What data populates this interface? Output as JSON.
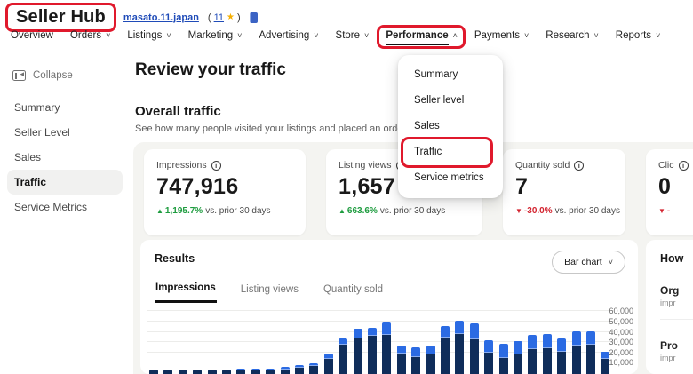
{
  "icons": {
    "info": "i",
    "star": "★",
    "chevron_down": "˅",
    "chevron_up": "˄",
    "trend_up": "▲",
    "trend_down": "▼"
  },
  "colors": {
    "annotation": "#e0192c",
    "bar_organic": "#0f2d5a",
    "bar_promoted": "#2b6be3",
    "positive": "#1e9c3f",
    "negative": "#d3232f"
  },
  "header": {
    "title": "Seller Hub",
    "username": "masato.11.japan",
    "feedback_prefix": "(",
    "feedback_count": "11",
    "feedback_suffix": ")"
  },
  "nav": {
    "items": [
      {
        "label": "Overview",
        "chevron": "none",
        "active": false,
        "annotated": false
      },
      {
        "label": "Orders",
        "chevron": "down",
        "active": false,
        "annotated": false
      },
      {
        "label": "Listings",
        "chevron": "down",
        "active": false,
        "annotated": false
      },
      {
        "label": "Marketing",
        "chevron": "down",
        "active": false,
        "annotated": false
      },
      {
        "label": "Advertising",
        "chevron": "down",
        "active": false,
        "annotated": false
      },
      {
        "label": "Store",
        "chevron": "down",
        "active": false,
        "annotated": false
      },
      {
        "label": "Performance",
        "chevron": "up",
        "active": true,
        "annotated": true
      },
      {
        "label": "Payments",
        "chevron": "down",
        "active": false,
        "annotated": false
      },
      {
        "label": "Research",
        "chevron": "down",
        "active": false,
        "annotated": false
      },
      {
        "label": "Reports",
        "chevron": "down",
        "active": false,
        "annotated": false
      }
    ]
  },
  "sidebar": {
    "collapse_label": "Collapse",
    "items": [
      {
        "label": "Summary",
        "active": false
      },
      {
        "label": "Seller Level",
        "active": false
      },
      {
        "label": "Sales",
        "active": false
      },
      {
        "label": "Traffic",
        "active": true
      },
      {
        "label": "Service Metrics",
        "active": false
      }
    ]
  },
  "dropdown": {
    "items": [
      {
        "label": "Summary",
        "annotated": false
      },
      {
        "label": "Seller level",
        "annotated": false
      },
      {
        "label": "Sales",
        "annotated": false
      },
      {
        "label": "Traffic",
        "annotated": true
      },
      {
        "label": "Service metrics",
        "annotated": false
      }
    ]
  },
  "main": {
    "page_title": "Review your traffic",
    "section_title": "Overall traffic",
    "section_description": "See how many people visited your listings and placed an order.",
    "cards": [
      {
        "label": "Impressions",
        "value": "747,916",
        "trend": "up",
        "delta": "1,195.7%",
        "suffix": "vs. prior 30 days"
      },
      {
        "label": "Listing views",
        "value": "1,657",
        "trend": "up",
        "delta": "663.6%",
        "suffix": "vs. prior 30 days"
      },
      {
        "label": "Quantity sold",
        "value": "7",
        "trend": "down",
        "delta": "-30.0%",
        "suffix": "vs. prior 30 days"
      },
      {
        "label": "Clic",
        "value": "0",
        "trend": "down",
        "delta": "-",
        "suffix": ""
      }
    ],
    "results": {
      "title": "Results",
      "chart_button_label": "Bar chart",
      "tabs": [
        {
          "label": "Impressions",
          "active": true
        },
        {
          "label": "Listing views",
          "active": false
        },
        {
          "label": "Quantity sold",
          "active": false
        }
      ]
    }
  },
  "right_panel": {
    "heading": "How",
    "rows": [
      {
        "title": "Org",
        "subtitle": "impr"
      },
      {
        "title": "Pro",
        "subtitle": "impr"
      }
    ]
  },
  "chart_data": {
    "type": "bar",
    "stacked": true,
    "title": "",
    "xlabel": "",
    "ylabel": "",
    "x_axis_labels_visible": false,
    "ylim": [
      0,
      60000
    ],
    "grid": true,
    "legend": "none",
    "yticks": [
      {
        "value": 60000,
        "label": "60,000"
      },
      {
        "value": 50000,
        "label": "50,000"
      },
      {
        "value": 40000,
        "label": "40,000"
      },
      {
        "value": 30000,
        "label": "30,000"
      },
      {
        "value": 20000,
        "label": "20,000"
      },
      {
        "value": 10000,
        "label": "10,000"
      }
    ],
    "series": [
      {
        "name": "organic",
        "color": "#0f2d5a",
        "values": [
          1800,
          1800,
          1800,
          1800,
          1800,
          1500,
          2000,
          2000,
          2000,
          3000,
          4000,
          6000,
          13000,
          27000,
          33000,
          35000,
          36000,
          18000,
          15000,
          17000,
          34000,
          37000,
          32000,
          19000,
          14000,
          17000,
          22000,
          23000,
          20000,
          26000,
          27000,
          13000
        ]
      },
      {
        "name": "promoted",
        "color": "#2b6be3",
        "values": [
          1200,
          1200,
          1200,
          1200,
          1200,
          1500,
          1500,
          1500,
          1500,
          2000,
          2500,
          3000,
          5000,
          6000,
          9000,
          8000,
          12000,
          8000,
          9000,
          9000,
          11000,
          13000,
          15000,
          12000,
          14000,
          13000,
          14000,
          14000,
          13000,
          14000,
          13000,
          7000
        ]
      }
    ]
  }
}
